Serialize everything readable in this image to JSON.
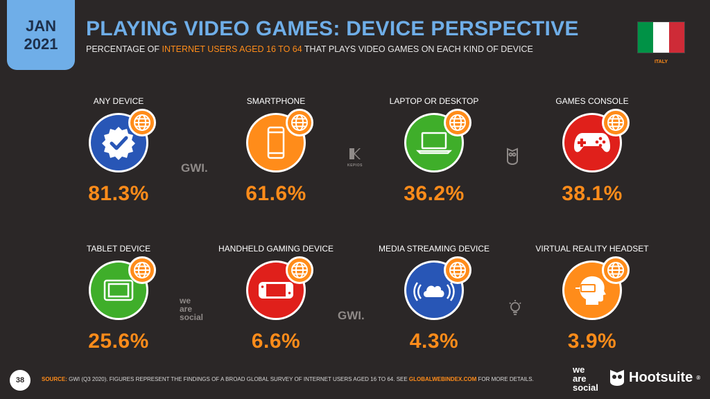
{
  "badge": {
    "month": "JAN",
    "year": "2021"
  },
  "header": {
    "title": "PLAYING VIDEO GAMES: DEVICE PERSPECTIVE",
    "subtitle_pre": "PERCENTAGE OF ",
    "subtitle_highlight": "INTERNET USERS AGED 16 TO 64",
    "subtitle_post": " THAT PLAYS VIDEO GAMES ON EACH KIND OF DEVICE"
  },
  "country": {
    "name": "ITALY",
    "flag_colors": [
      "#009246",
      "#ffffff",
      "#ce2b37"
    ]
  },
  "cards": [
    {
      "label": "ANY DEVICE",
      "value": "81.3%",
      "color": "#2856b6",
      "icon": "badge-check-icon"
    },
    {
      "label": "SMARTPHONE",
      "value": "61.6%",
      "color": "#ff8c1a",
      "icon": "smartphone-icon"
    },
    {
      "label": "LAPTOP OR DESKTOP",
      "value": "36.2%",
      "color": "#3fae2a",
      "icon": "laptop-icon"
    },
    {
      "label": "GAMES CONSOLE",
      "value": "38.1%",
      "color": "#e0201b",
      "icon": "gamepad-icon"
    },
    {
      "label": "TABLET DEVICE",
      "value": "25.6%",
      "color": "#3fae2a",
      "icon": "tablet-icon"
    },
    {
      "label": "HANDHELD GAMING DEVICE",
      "value": "6.6%",
      "color": "#e0201b",
      "icon": "handheld-console-icon"
    },
    {
      "label": "MEDIA STREAMING DEVICE",
      "value": "4.3%",
      "color": "#2856b6",
      "icon": "cloud-stream-icon"
    },
    {
      "label": "VIRTUAL REALITY HEADSET",
      "value": "3.9%",
      "color": "#ff8c1a",
      "icon": "vr-headset-icon"
    }
  ],
  "watermarks": {
    "gwi": "GWI.",
    "kepios": "KEPIOS",
    "we_are_social": [
      "we",
      "are",
      "social"
    ]
  },
  "footer": {
    "page_number": "38",
    "source_label": "SOURCE:",
    "source_text": " GWI (Q3 2020). FIGURES REPRESENT THE FINDINGS OF A BROAD GLOBAL SURVEY OF INTERNET USERS AGED 16 TO 64. SEE ",
    "source_link": "GLOBALWEBINDEX.COM",
    "source_tail": " FOR MORE DETAILS.",
    "brand_was": [
      "we",
      "are",
      "social"
    ],
    "brand_hootsuite": "Hootsuite",
    "brand_hootsuite_mark": "®"
  },
  "colors": {
    "background": "#2b2727",
    "accent_orange": "#ff8c1a",
    "title_blue": "#6faee8"
  }
}
